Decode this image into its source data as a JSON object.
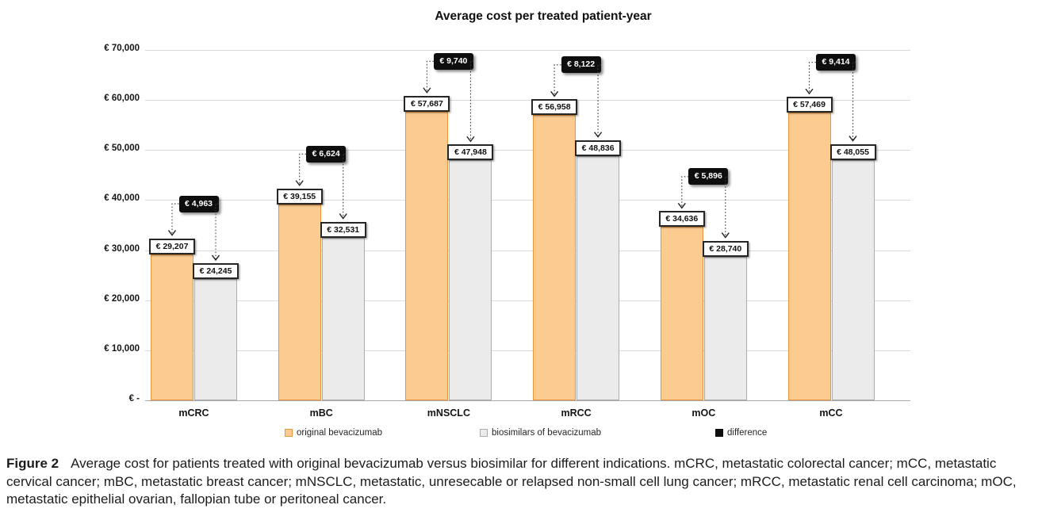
{
  "chart_data": {
    "type": "bar",
    "title": "Average cost per treated patient-year",
    "categories": [
      "mCRC",
      "mBC",
      "mNSCLC",
      "mRCC",
      "mOC",
      "mCC"
    ],
    "series": [
      {
        "name": "original bevacizumab",
        "values": [
          29207,
          39155,
          57687,
          56958,
          34636,
          57469
        ],
        "labels": [
          "€ 29,207",
          "€ 39,155",
          "€ 57,687",
          "€ 56,958",
          "€ 34,636",
          "€ 57,469"
        ],
        "fill": "#FBCB90",
        "border": "#E8963C"
      },
      {
        "name": "biosimilars of bevacizumab",
        "values": [
          24245,
          32531,
          47948,
          48836,
          28740,
          48055
        ],
        "labels": [
          "€ 24,245",
          "€ 32,531",
          "€ 47,948",
          "€ 48,836",
          "€ 28,740",
          "€ 48,055"
        ],
        "fill": "#EBEBEB",
        "border": "#ACACAC"
      },
      {
        "name": "difference",
        "values": [
          4963,
          6624,
          9740,
          8122,
          5896,
          9414
        ],
        "labels": [
          "€ 4,963",
          "€ 6,624",
          "€ 9,740",
          "€ 8,122",
          "€ 5,896",
          "€ 9,414"
        ],
        "fill": "#0E0E0E",
        "border": "#0E0E0E"
      }
    ],
    "ylim": [
      0,
      70000
    ],
    "ytick_step": 10000,
    "ytick_labels": [
      "€ -",
      "€ 10,000",
      "€ 20,000",
      "€ 30,000",
      "€ 40,000",
      "€ 50,000",
      "€ 60,000",
      "€ 70,000"
    ],
    "grid": true,
    "legend_position": "bottom"
  },
  "caption": {
    "label": "Figure 2",
    "text": "Average cost for patients treated with original bevacizumab versus biosimilar for different indications. mCRC, metastatic colorectal cancer; mCC, metastatic cervical cancer; mBC, metastatic breast cancer; mNSCLC, metastatic, unresecable or relapsed non-small cell lung cancer; mRCC, metastatic renal cell carcinoma; mOC, metastatic epithelial ovarian, fallopian tube or peritoneal cancer."
  }
}
